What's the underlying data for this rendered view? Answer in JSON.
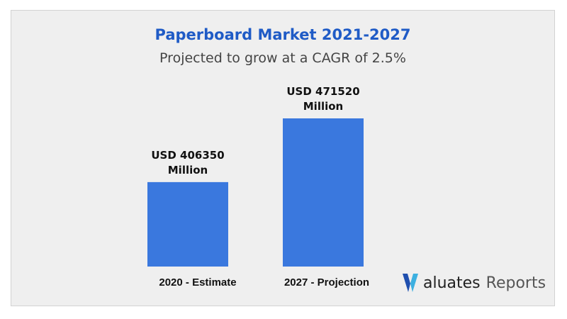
{
  "chart_data": {
    "type": "bar",
    "title": "Paperboard Market 2021-2027",
    "subtitle": "Projected to grow at a CAGR of 2.5%",
    "categories": [
      "2020 - Estimate",
      "2027 - Projection"
    ],
    "values": [
      406350,
      471520
    ],
    "data_labels": [
      [
        "USD 406350",
        "Million"
      ],
      [
        "USD 471520",
        "Million"
      ]
    ],
    "unit": "USD Million",
    "bar_color": "#3a78de",
    "grid": false,
    "axes_visible": false
  },
  "branding": {
    "logo_mark": "V",
    "logo_text_a": "aluates",
    "logo_text_b": "Reports",
    "logo_colors": [
      "#1f4fae",
      "#3db0e0"
    ]
  }
}
